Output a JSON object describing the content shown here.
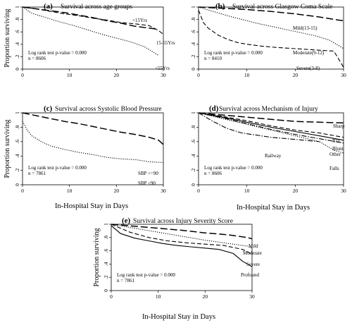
{
  "chart_data": [
    {
      "type": "line",
      "panel": "(a)",
      "title": "Survival across age groups",
      "ylabel": "Proportion surviving",
      "xlabel": "",
      "xlim": [
        0,
        30
      ],
      "ylim": [
        0,
        1
      ],
      "xticks": [
        "0",
        "10",
        "20",
        "30"
      ],
      "yticks": [
        "0",
        ".2",
        ".4",
        ".6",
        ".8",
        "1"
      ],
      "note": [
        "Log rank test p-value = 0.000",
        "n = 8606"
      ],
      "series": [
        {
          "name": "<15Yrs",
          "style": "longdash",
          "x": [
            0,
            3,
            6,
            9,
            12,
            15,
            18,
            21,
            24,
            27,
            29
          ],
          "y": [
            1.0,
            0.97,
            0.94,
            0.91,
            0.87,
            0.83,
            0.78,
            0.74,
            0.69,
            0.66,
            0.64
          ]
        },
        {
          "name": "15-55Yrs",
          "style": "shortdash",
          "x": [
            0,
            3,
            6,
            9,
            12,
            15,
            18,
            21,
            24,
            27,
            29,
            30
          ],
          "y": [
            1.0,
            0.97,
            0.93,
            0.89,
            0.86,
            0.82,
            0.79,
            0.75,
            0.73,
            0.7,
            0.62,
            0.56
          ]
        },
        {
          "name": ">55Yrs",
          "style": "dotted",
          "x": [
            0,
            2,
            5,
            8,
            11,
            14,
            17,
            20,
            23,
            26,
            29
          ],
          "y": [
            1.0,
            0.9,
            0.83,
            0.76,
            0.7,
            0.63,
            0.56,
            0.5,
            0.44,
            0.36,
            0.22
          ]
        }
      ]
    },
    {
      "type": "line",
      "panel": "(b)",
      "title": "Survival across Glasgow Coma Scale",
      "ylabel": "",
      "xlabel": "",
      "xlim": [
        0,
        30
      ],
      "ylim": [
        0,
        1
      ],
      "xticks": [
        "0",
        "10",
        "20",
        "30"
      ],
      "yticks": [
        "0",
        ".2",
        ".4",
        ".6",
        ".8",
        "1"
      ],
      "note": [
        "Log rank test p-value = 0.000",
        "n = 8410"
      ],
      "series": [
        {
          "name": "Mild(13-15)",
          "style": "longdash",
          "x": [
            0,
            5,
            10,
            15,
            20,
            25,
            29,
            30
          ],
          "y": [
            1.0,
            0.98,
            0.96,
            0.93,
            0.89,
            0.84,
            0.79,
            0.78
          ]
        },
        {
          "name": "Moderate(9-12)",
          "style": "dotted",
          "x": [
            0,
            3,
            6,
            9,
            12,
            15,
            18,
            21,
            24,
            27,
            29,
            30
          ],
          "y": [
            1.0,
            0.93,
            0.86,
            0.8,
            0.74,
            0.69,
            0.64,
            0.59,
            0.54,
            0.47,
            0.38,
            0.33
          ]
        },
        {
          "name": "Severe(3-8)",
          "style": "shortdash",
          "x": [
            0,
            1,
            2,
            4,
            6,
            8,
            10,
            13,
            16,
            20,
            24,
            28,
            30
          ],
          "y": [
            0.95,
            0.75,
            0.66,
            0.55,
            0.48,
            0.43,
            0.4,
            0.37,
            0.35,
            0.33,
            0.31,
            0.29,
            0.03
          ]
        }
      ]
    },
    {
      "type": "line",
      "panel": "(c)",
      "title": "Survival across Systolic Blood Pressure",
      "ylabel": "Proportion surviving",
      "xlabel": "In-Hospital Stay in Days",
      "xlim": [
        0,
        30
      ],
      "ylim": [
        0,
        1
      ],
      "xticks": [
        "0",
        "10",
        "20",
        "30"
      ],
      "yticks": [
        "0",
        ".2",
        ".4",
        ".6",
        ".8",
        "1"
      ],
      "note": [
        "Log rank test p-value = 0.000",
        "n = 7861"
      ],
      "series": [
        {
          "name": "SBP >=90",
          "style": "longdash",
          "x": [
            0,
            3,
            6,
            9,
            12,
            15,
            18,
            21,
            24,
            27,
            29,
            30
          ],
          "y": [
            1.0,
            0.96,
            0.92,
            0.88,
            0.85,
            0.81,
            0.77,
            0.73,
            0.7,
            0.66,
            0.62,
            0.56
          ]
        },
        {
          "name": "SBP <90",
          "style": "dotted",
          "x": [
            0,
            1,
            2,
            4,
            6,
            9,
            12,
            15,
            18,
            21,
            24,
            27,
            30
          ],
          "y": [
            0.88,
            0.76,
            0.68,
            0.6,
            0.54,
            0.49,
            0.45,
            0.42,
            0.38,
            0.36,
            0.35,
            0.32,
            0.31
          ]
        }
      ]
    },
    {
      "type": "line",
      "panel": "(d)",
      "title": "Survival across Mechanism of Injury",
      "ylabel": "",
      "xlabel": "In-Hospital Stay in Days",
      "xlim": [
        0,
        30
      ],
      "ylim": [
        0,
        1
      ],
      "xticks": [
        "0",
        "10",
        "20",
        "30"
      ],
      "yticks": [
        "0",
        ".2",
        ".4",
        ".6",
        ".8",
        "1"
      ],
      "note": [
        "Log rank test p-value = 0.000",
        "n = 8606"
      ],
      "series": [
        {
          "name": "Sharp",
          "style": "longdash",
          "x": [
            0,
            5,
            10,
            15,
            20,
            25,
            30
          ],
          "y": [
            1.0,
            0.97,
            0.94,
            0.91,
            0.88,
            0.87,
            0.86
          ]
        },
        {
          "name": "RTI",
          "style": "shortdash",
          "x": [
            0,
            5,
            10,
            15,
            20,
            25,
            30
          ],
          "y": [
            1.0,
            0.95,
            0.89,
            0.82,
            0.76,
            0.72,
            0.66
          ]
        },
        {
          "name": "Blunt",
          "style": "solid",
          "x": [
            0,
            5,
            10,
            15,
            20,
            25,
            30
          ],
          "y": [
            1.0,
            0.94,
            0.87,
            0.8,
            0.74,
            0.68,
            0.62
          ]
        },
        {
          "name": "Other",
          "style": "dashdot",
          "x": [
            0,
            5,
            10,
            15,
            20,
            25,
            30
          ],
          "y": [
            1.0,
            0.93,
            0.85,
            0.77,
            0.7,
            0.64,
            0.58
          ]
        },
        {
          "name": "Railway",
          "style": "dashdot",
          "x": [
            0,
            3,
            6,
            9,
            12,
            15,
            20,
            25
          ],
          "y": [
            1.0,
            0.88,
            0.78,
            0.72,
            0.69,
            0.66,
            0.63,
            0.6
          ]
        },
        {
          "name": "Falls",
          "style": "dotted",
          "x": [
            0,
            5,
            10,
            15,
            20,
            25,
            28,
            30
          ],
          "y": [
            1.0,
            0.92,
            0.84,
            0.76,
            0.68,
            0.6,
            0.48,
            0.44
          ]
        }
      ]
    },
    {
      "type": "line",
      "panel": "(e)",
      "title": "Survival across Injury Severity Score",
      "ylabel": "Proportion surviving",
      "xlabel": "In-Hospital Stay in Days",
      "xlim": [
        0,
        30
      ],
      "ylim": [
        0,
        1
      ],
      "xticks": [
        "0",
        "10",
        "20",
        "30"
      ],
      "yticks": [
        "0",
        ".2",
        ".4",
        ".6",
        ".8",
        "1"
      ],
      "note": [
        "Log rank test p-value = 0.000",
        "n = 7861"
      ],
      "series": [
        {
          "name": "Mild",
          "style": "longdash",
          "x": [
            0,
            5,
            10,
            15,
            20,
            25,
            29,
            30
          ],
          "y": [
            1.0,
            0.97,
            0.94,
            0.91,
            0.87,
            0.84,
            0.8,
            0.78
          ]
        },
        {
          "name": "Moderate",
          "style": "dotted",
          "x": [
            0,
            5,
            10,
            15,
            20,
            25,
            29,
            30
          ],
          "y": [
            1.0,
            0.94,
            0.88,
            0.82,
            0.76,
            0.71,
            0.67,
            0.64
          ]
        },
        {
          "name": "Severe",
          "style": "shortdash",
          "x": [
            0,
            4,
            8,
            12,
            16,
            20,
            24,
            28,
            30
          ],
          "y": [
            1.0,
            0.88,
            0.8,
            0.75,
            0.72,
            0.7,
            0.68,
            0.62,
            0.55
          ]
        },
        {
          "name": "Profound",
          "style": "solid",
          "x": [
            0,
            2,
            5,
            8,
            11,
            14,
            17,
            20,
            23,
            26,
            28,
            30
          ],
          "y": [
            0.98,
            0.86,
            0.79,
            0.75,
            0.71,
            0.68,
            0.66,
            0.64,
            0.62,
            0.56,
            0.44,
            0.36
          ]
        }
      ]
    }
  ]
}
